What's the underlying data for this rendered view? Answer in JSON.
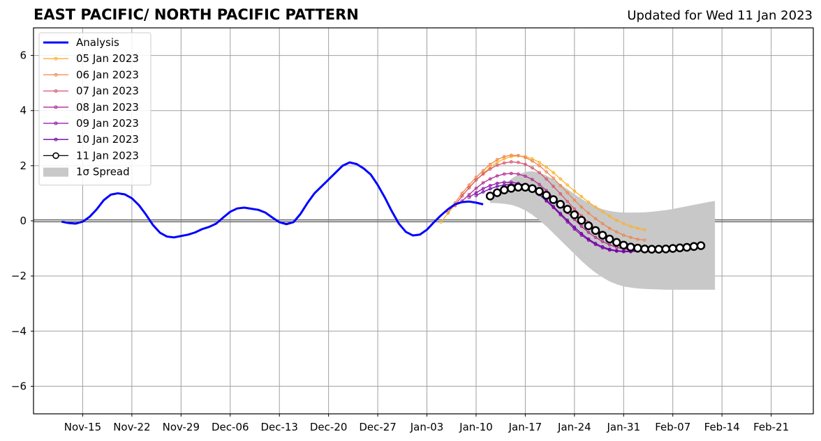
{
  "header": {
    "title": "EAST PACIFIC/ NORTH PACIFIC PATTERN",
    "updated": "Updated for Wed 11 Jan 2023"
  },
  "chart_data": {
    "type": "line",
    "title": "EAST PACIFIC/ NORTH PACIFIC PATTERN",
    "subtitle": "Updated for Wed 11 Jan 2023",
    "xlabel": "",
    "ylabel": "",
    "x_unit": "date",
    "xlim": [
      "2022-11-08",
      "2023-02-27"
    ],
    "ylim": [
      -7,
      7
    ],
    "yticks": [
      -6,
      -4,
      -2,
      0,
      2,
      4,
      6
    ],
    "ytick_labels": [
      "−6",
      "−4",
      "−2",
      "0",
      "2",
      "4",
      "6"
    ],
    "xticks": [
      "2022-11-15",
      "2022-11-22",
      "2022-11-29",
      "2022-12-06",
      "2022-12-13",
      "2022-12-20",
      "2022-12-27",
      "2023-01-03",
      "2023-01-10",
      "2023-01-17",
      "2023-01-24",
      "2023-01-31",
      "2023-02-07",
      "2023-02-14",
      "2023-02-21"
    ],
    "xtick_labels": [
      "Nov-15",
      "Nov-22",
      "Nov-29",
      "Dec-06",
      "Dec-13",
      "Dec-20",
      "Dec-27",
      "Jan-03",
      "Jan-10",
      "Jan-17",
      "Jan-24",
      "Jan-31",
      "Feb-07",
      "Feb-14",
      "Feb-21"
    ],
    "grid": true,
    "legend_position": "top-left",
    "series": [
      {
        "name": "Analysis",
        "color": "#0000ff",
        "style": "line",
        "start_date": "2022-11-12",
        "values": [
          -0.03,
          -0.08,
          -0.1,
          -0.03,
          0.15,
          0.42,
          0.75,
          0.95,
          1.0,
          0.96,
          0.82,
          0.57,
          0.23,
          -0.15,
          -0.43,
          -0.57,
          -0.6,
          -0.55,
          -0.5,
          -0.42,
          -0.3,
          -0.22,
          -0.1,
          0.12,
          0.33,
          0.45,
          0.48,
          0.44,
          0.4,
          0.3,
          0.12,
          -0.05,
          -0.12,
          -0.05,
          0.25,
          0.65,
          1.0,
          1.25,
          1.5,
          1.75,
          2.0,
          2.12,
          2.06,
          1.9,
          1.68,
          1.3,
          0.85,
          0.35,
          -0.1,
          -0.4,
          -0.53,
          -0.5,
          -0.32,
          -0.05,
          0.2,
          0.42,
          0.6,
          0.68,
          0.7,
          0.66,
          0.6
        ]
      },
      {
        "name": "05 Jan 2023",
        "color": "#fbb12b",
        "style": "dots",
        "start_date": "2023-01-05",
        "values": [
          -0.05,
          0.28,
          0.58,
          0.9,
          1.2,
          1.48,
          1.72,
          1.95,
          2.12,
          2.25,
          2.33,
          2.36,
          2.33,
          2.25,
          2.12,
          1.95,
          1.75,
          1.52,
          1.3,
          1.08,
          0.88,
          0.68,
          0.5,
          0.33,
          0.17,
          0.02,
          -0.1,
          -0.2,
          -0.27,
          -0.33
        ]
      },
      {
        "name": "06 Jan 2023",
        "color": "#f1844b",
        "style": "dots",
        "start_date": "2023-01-06",
        "values": [
          0.3,
          0.65,
          1.0,
          1.3,
          1.58,
          1.82,
          2.05,
          2.22,
          2.33,
          2.38,
          2.37,
          2.3,
          2.17,
          2.0,
          1.78,
          1.55,
          1.28,
          1.02,
          0.75,
          0.5,
          0.28,
          0.08,
          -0.1,
          -0.27,
          -0.4,
          -0.52,
          -0.6,
          -0.67,
          -0.7
        ]
      },
      {
        "name": "07 Jan 2023",
        "color": "#d5546e",
        "style": "dots",
        "start_date": "2023-01-07",
        "values": [
          0.55,
          0.9,
          1.2,
          1.48,
          1.7,
          1.88,
          2.02,
          2.1,
          2.14,
          2.12,
          2.05,
          1.92,
          1.75,
          1.52,
          1.25,
          0.98,
          0.7,
          0.43,
          0.18,
          -0.05,
          -0.27,
          -0.45,
          -0.6,
          -0.72,
          -0.82,
          -0.9,
          -0.95,
          -0.98,
          -0.99,
          -1.0
        ]
      },
      {
        "name": "08 Jan 2023",
        "color": "#b12a90",
        "style": "dots",
        "start_date": "2023-01-08",
        "values": [
          0.72,
          0.95,
          1.18,
          1.38,
          1.52,
          1.63,
          1.7,
          1.72,
          1.7,
          1.62,
          1.5,
          1.32,
          1.1,
          0.85,
          0.58,
          0.3,
          0.05,
          -0.2,
          -0.42,
          -0.6,
          -0.75,
          -0.87,
          -0.96,
          -1.02,
          -1.06,
          -1.08,
          -1.08,
          -1.07,
          -1.05,
          -1.02
        ]
      },
      {
        "name": "09 Jan 2023",
        "color": "#8a09a5",
        "style": "dots",
        "start_date": "2023-01-09",
        "values": [
          0.85,
          1.02,
          1.17,
          1.28,
          1.36,
          1.4,
          1.4,
          1.36,
          1.28,
          1.14,
          0.95,
          0.72,
          0.48,
          0.22,
          -0.04,
          -0.3,
          -0.52,
          -0.7,
          -0.86,
          -0.98,
          -1.06,
          -1.1,
          -1.12,
          -1.12,
          -1.1,
          -1.08,
          -1.05,
          -1.0,
          -0.95,
          -0.9
        ]
      },
      {
        "name": "10 Jan 2023",
        "color": "#6a00a8",
        "style": "dots",
        "start_date": "2023-01-10",
        "values": [
          0.92,
          1.05,
          1.16,
          1.25,
          1.3,
          1.32,
          1.3,
          1.24,
          1.12,
          0.96,
          0.75,
          0.52,
          0.27,
          0.02,
          -0.23,
          -0.46,
          -0.66,
          -0.82,
          -0.94,
          -1.03,
          -1.08,
          -1.1,
          -1.1,
          -1.08,
          -1.05,
          -1.02,
          -0.99,
          -0.96,
          -0.93,
          -0.9
        ]
      },
      {
        "name": "11 Jan 2023",
        "color": "#000000",
        "style": "circles",
        "start_date": "2023-01-12",
        "values": [
          0.9,
          1.02,
          1.12,
          1.18,
          1.22,
          1.22,
          1.17,
          1.07,
          0.93,
          0.77,
          0.6,
          0.42,
          0.22,
          0.02,
          -0.18,
          -0.35,
          -0.52,
          -0.66,
          -0.78,
          -0.88,
          -0.95,
          -0.99,
          -1.02,
          -1.03,
          -1.03,
          -1.02,
          -1.0,
          -0.98,
          -0.96,
          -0.93,
          -0.9
        ]
      }
    ],
    "spread": {
      "name": "1σ Spread",
      "color": "#c8c8c8",
      "start_date": "2023-01-12",
      "upper": [
        0.8,
        1.05,
        1.3,
        1.52,
        1.68,
        1.78,
        1.8,
        1.75,
        1.65,
        1.5,
        1.33,
        1.15,
        0.97,
        0.8,
        0.65,
        0.52,
        0.42,
        0.36,
        0.32,
        0.3,
        0.3,
        0.3,
        0.31,
        0.33,
        0.36,
        0.39,
        0.43,
        0.48,
        0.53,
        0.58,
        0.63,
        0.68,
        0.72
      ],
      "lower": [
        0.65,
        0.64,
        0.62,
        0.58,
        0.5,
        0.38,
        0.22,
        0.02,
        -0.2,
        -0.45,
        -0.7,
        -0.95,
        -1.2,
        -1.45,
        -1.68,
        -1.88,
        -2.05,
        -2.2,
        -2.3,
        -2.38,
        -2.42,
        -2.45,
        -2.47,
        -2.48,
        -2.49,
        -2.5,
        -2.5,
        -2.5,
        -2.5,
        -2.5,
        -2.5,
        -2.5,
        -2.5
      ]
    }
  }
}
